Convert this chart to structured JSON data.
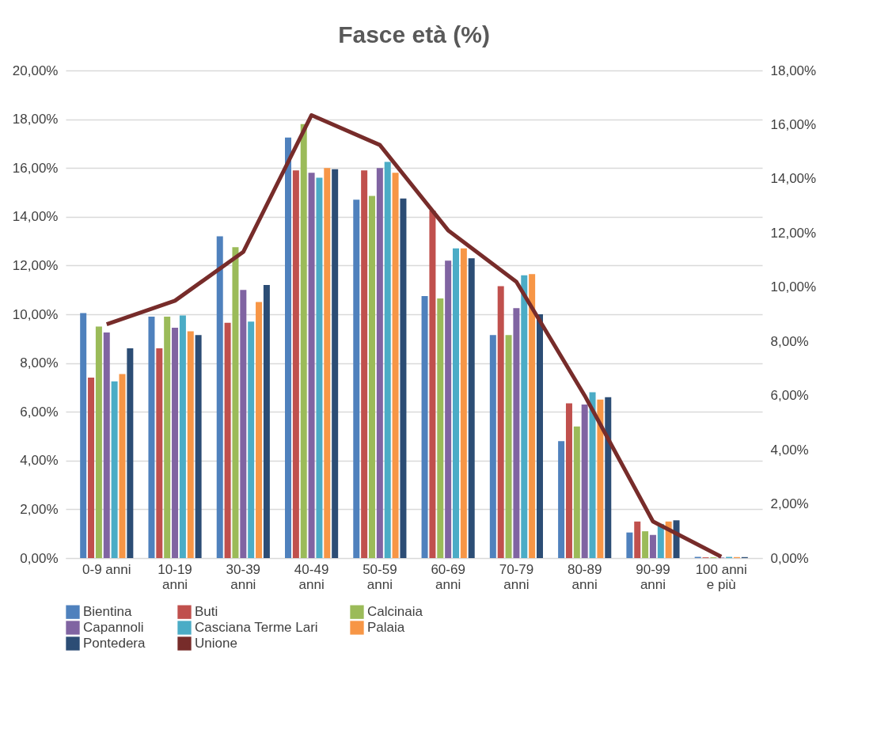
{
  "chart_data": {
    "type": "bar",
    "title": "Fasce età  (%)",
    "categories": [
      "0-9 anni",
      "10-19\nanni",
      "30-39\nanni",
      "40-49\nanni",
      "50-59\nanni",
      "60-69\nanni",
      "70-79\nanni",
      "80-89\nanni",
      "90-99\nanni",
      "100 anni\ne più"
    ],
    "series": [
      {
        "name": "Bientina",
        "color": "#4f81bd",
        "values": [
          10.05,
          9.9,
          13.2,
          17.25,
          14.7,
          10.75,
          9.15,
          4.8,
          1.05,
          0.05
        ]
      },
      {
        "name": "Buti",
        "color": "#c0504d",
        "values": [
          7.4,
          8.6,
          9.65,
          15.9,
          15.9,
          14.25,
          11.15,
          6.35,
          1.5,
          0.03
        ]
      },
      {
        "name": "Calcinaia",
        "color": "#9bbb59",
        "values": [
          9.5,
          9.9,
          12.75,
          17.8,
          14.85,
          10.65,
          9.15,
          5.4,
          1.1,
          0.03
        ]
      },
      {
        "name": "Capannoli",
        "color": "#8064a2",
        "values": [
          9.25,
          9.45,
          11.0,
          15.8,
          16.0,
          12.2,
          10.25,
          6.3,
          0.95,
          0.02
        ]
      },
      {
        "name": "Casciana Terme Lari",
        "color": "#4bacc6",
        "values": [
          7.25,
          9.95,
          9.7,
          15.6,
          16.25,
          12.7,
          11.6,
          6.8,
          1.4,
          0.05
        ]
      },
      {
        "name": "Palaia",
        "color": "#f79646",
        "values": [
          7.55,
          9.3,
          10.5,
          16.0,
          15.8,
          12.7,
          11.65,
          6.5,
          1.5,
          0.04
        ]
      },
      {
        "name": "Pontedera",
        "color": "#2c4d75",
        "values": [
          8.6,
          9.15,
          11.2,
          15.95,
          14.75,
          12.3,
          10.0,
          6.6,
          1.55,
          0.04
        ]
      },
      {
        "name": "Unione",
        "color": "#772c2a",
        "type": "line",
        "axis": "y2",
        "values": [
          8.63,
          9.5,
          11.3,
          16.35,
          15.25,
          12.1,
          10.2,
          6.0,
          1.35,
          0.05
        ]
      }
    ],
    "ylim": [
      0,
      20
    ],
    "yticks": [
      {
        "value": 0,
        "label": "0,00%"
      },
      {
        "value": 2,
        "label": "2,00%"
      },
      {
        "value": 4,
        "label": "4,00%"
      },
      {
        "value": 6,
        "label": "6,00%"
      },
      {
        "value": 8,
        "label": "8,00%"
      },
      {
        "value": 10,
        "label": "10,00%"
      },
      {
        "value": 12,
        "label": "12,00%"
      },
      {
        "value": 14,
        "label": "14,00%"
      },
      {
        "value": 16,
        "label": "16,00%"
      },
      {
        "value": 18,
        "label": "18,00%"
      },
      {
        "value": 20,
        "label": "20,00%"
      }
    ],
    "y2lim": [
      0,
      18
    ],
    "y2ticks": [
      {
        "value": 0,
        "label": "0,00%"
      },
      {
        "value": 2,
        "label": "2,00%"
      },
      {
        "value": 4,
        "label": "4,00%"
      },
      {
        "value": 6,
        "label": "6,00%"
      },
      {
        "value": 8,
        "label": "8,00%"
      },
      {
        "value": 10,
        "label": "10,00%"
      },
      {
        "value": 12,
        "label": "12,00%"
      },
      {
        "value": 14,
        "label": "14,00%"
      },
      {
        "value": 16,
        "label": "16,00%"
      },
      {
        "value": 18,
        "label": "18,00%"
      }
    ],
    "grid": "y",
    "legend": "bottom"
  }
}
